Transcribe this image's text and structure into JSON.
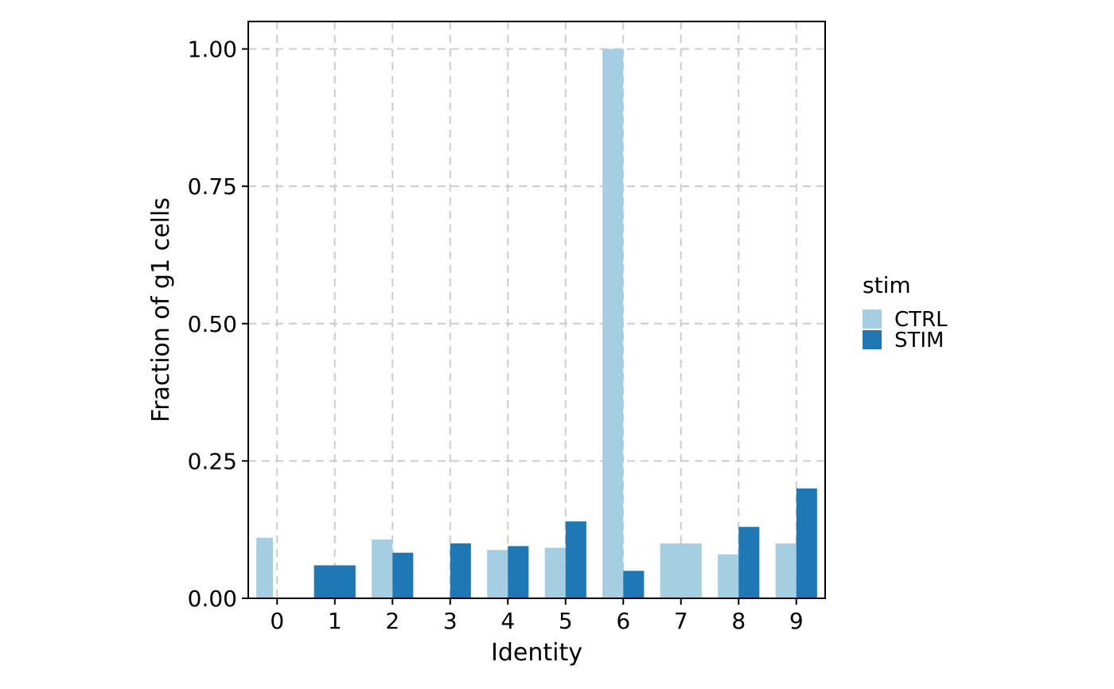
{
  "chart_data": {
    "type": "bar",
    "xlabel": "Identity",
    "ylabel": "Fraction of g1 cells",
    "ylim": [
      0,
      1.05
    ],
    "yticks": [
      0,
      0.25,
      0.5,
      0.75,
      1.0
    ],
    "ytick_labels": [
      "0.00",
      "0.25",
      "0.50",
      "0.75",
      "1.00"
    ],
    "categories": [
      "0",
      "1",
      "2",
      "3",
      "4",
      "5",
      "6",
      "7",
      "8",
      "9"
    ],
    "grid": true,
    "legend": {
      "title": "stim",
      "placement": "right"
    },
    "series": [
      {
        "name": "CTRL",
        "color": "#a6cee3",
        "values": [
          0.11,
          null,
          0.107,
          null,
          0.088,
          0.092,
          1.0,
          0.1,
          0.08,
          0.1
        ]
      },
      {
        "name": "STIM",
        "color": "#1f78b4",
        "values": [
          null,
          0.06,
          0.083,
          0.1,
          0.095,
          0.14,
          0.05,
          null,
          0.13,
          0.2
        ]
      }
    ]
  }
}
